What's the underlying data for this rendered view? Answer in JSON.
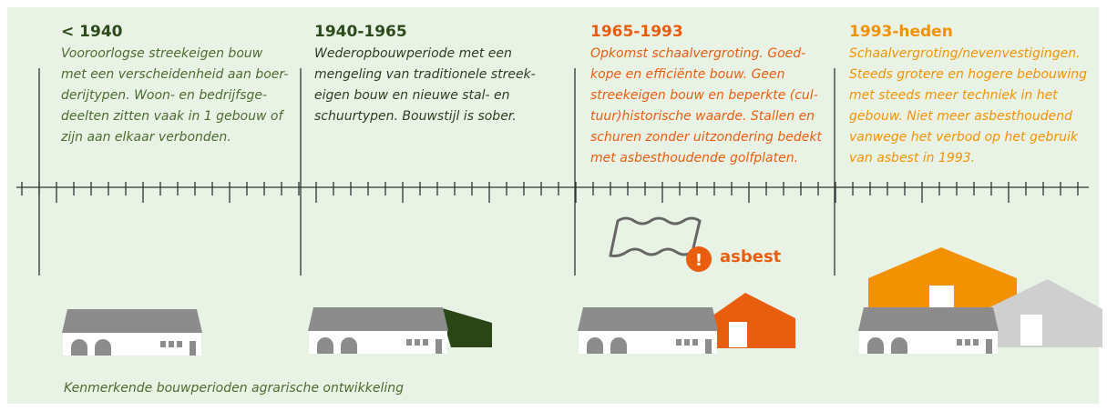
{
  "periods": [
    {
      "title": "< 1940",
      "lines": [
        "Vooroorlogse streekeigen bouw",
        "met een verscheidenheid aan boer-",
        "derijtypen. Woon- en bedrijfsge-",
        "deelten zitten vaak in 1 gebouw of",
        "zijn aan elkaar verbonden."
      ]
    },
    {
      "title": "1940-1965",
      "lines": [
        "Wederopbouwperiode met een",
        "mengeling van traditionele streek-",
        "eigen bouw en nieuwe stal- en",
        "schuurtypen. Bouwstijl is sober."
      ]
    },
    {
      "title": "1965-1993",
      "lines": [
        "Opkomst schaalvergroting. Goed-",
        "kope en efficiënte bouw. Geen",
        "streekeigen bouw en beperkte (cul-",
        "tuur)historische waarde. Stallen en",
        "schuren zonder uitzondering bedekt",
        "met asbesthoudende golfplaten."
      ]
    },
    {
      "title": "1993-heden",
      "lines": [
        "Schaalvergroting/nevenvestigingen.",
        "Steeds grotere en hogere bebouwing",
        "met steeds meer techniek in het",
        "gebouw. Niet meer asbesthoudend",
        "vanwege het verbod op het gebruik",
        "van asbest in 1993."
      ]
    }
  ],
  "asbestos_label": "asbest",
  "caption": "Kenmerkende bouwperioden agrarische ontwikkeling"
}
